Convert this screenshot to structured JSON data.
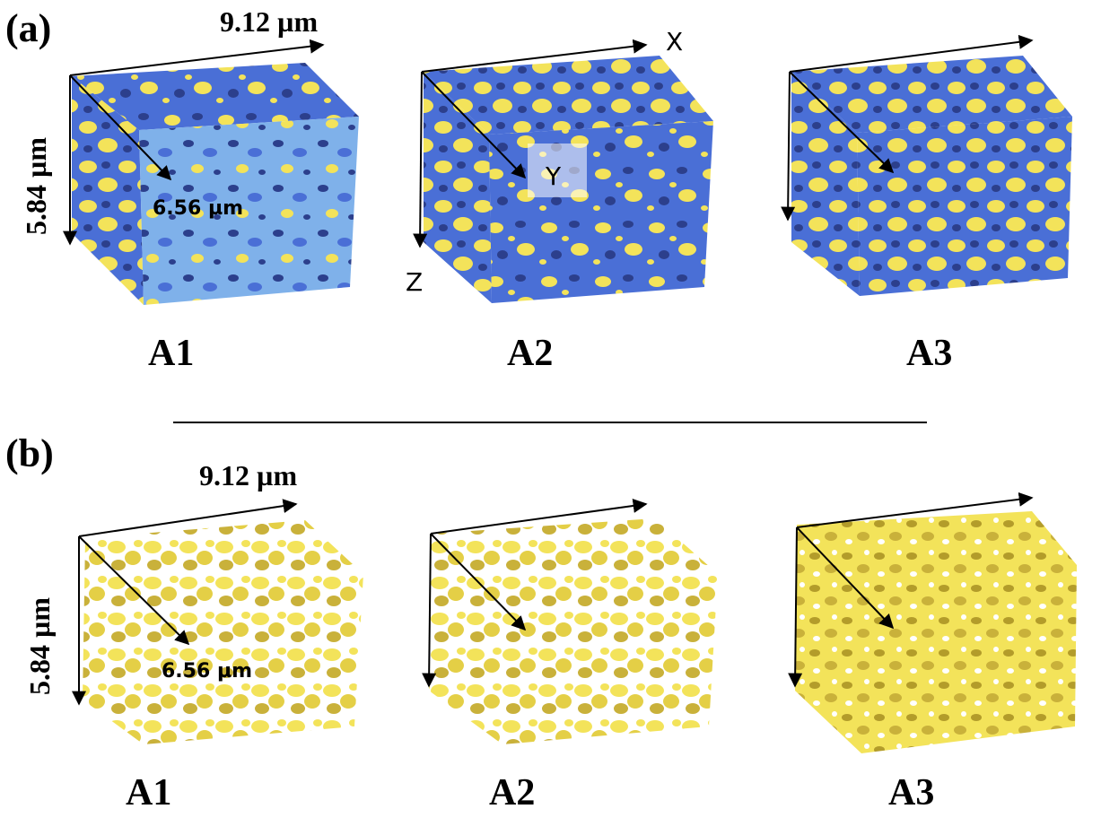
{
  "panels": {
    "a": {
      "label": "(a)"
    },
    "b": {
      "label": "(b)"
    }
  },
  "dimensions": {
    "width": "9.12 µm",
    "height": "5.84 µm",
    "depth": "6.56 µm"
  },
  "axes": {
    "x": "X",
    "y": "Y",
    "z": "Z"
  },
  "samples": [
    "A1",
    "A2",
    "A3"
  ],
  "colors": {
    "pore_light_blue": "#7fb1ea",
    "solid_blue": "#4a6fd6",
    "dark_blue": "#2c3f8c",
    "yellow_phase": "#f3e35a",
    "yellow_shadow": "#b39c2a"
  }
}
